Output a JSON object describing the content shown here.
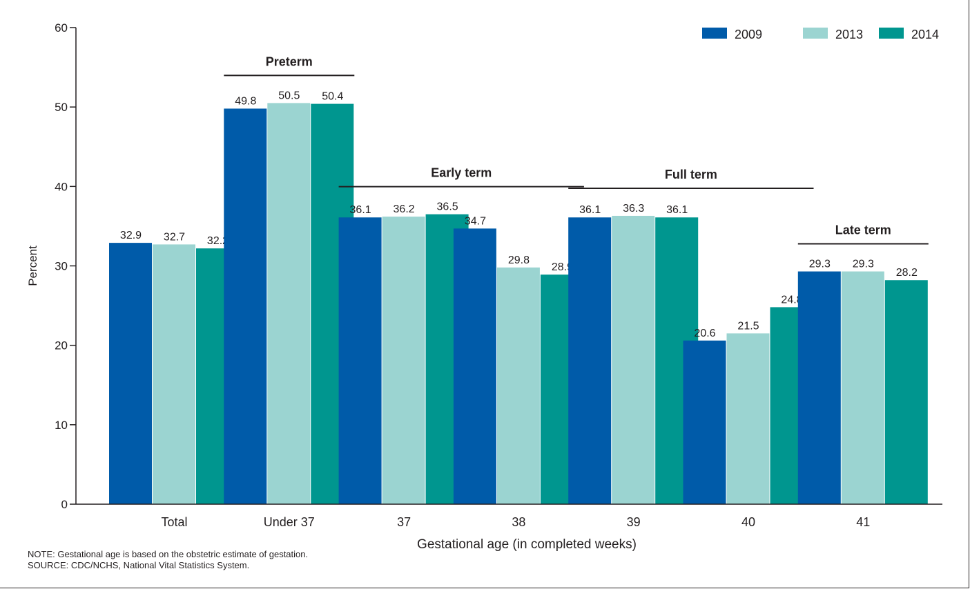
{
  "chart_data": {
    "type": "bar",
    "title": "",
    "xlabel": "Gestational age (in completed weeks)",
    "ylabel": "Percent",
    "ylim": [
      0,
      60
    ],
    "yticks": [
      0,
      10,
      20,
      30,
      40,
      50,
      60
    ],
    "categories": [
      "Total",
      "Under 37",
      "37",
      "38",
      "39",
      "40",
      "41"
    ],
    "series": [
      {
        "name": "2009",
        "color": "#005ba9",
        "values": [
          32.9,
          49.8,
          36.1,
          34.7,
          36.1,
          20.6,
          29.3
        ]
      },
      {
        "name": "2013",
        "color": "#9bd4d1",
        "values": [
          32.7,
          50.5,
          36.2,
          29.8,
          36.3,
          21.5,
          29.3
        ]
      },
      {
        "name": "2014",
        "color": "#00968f",
        "values": [
          32.2,
          50.4,
          36.5,
          28.9,
          36.1,
          24.8,
          28.2
        ]
      }
    ],
    "groups": [
      {
        "label": "Preterm",
        "categories": [
          "Under 37"
        ]
      },
      {
        "label": "Early term",
        "categories": [
          "37",
          "38"
        ]
      },
      {
        "label": "Full term",
        "categories": [
          "39",
          "40"
        ]
      },
      {
        "label": "Late term",
        "categories": [
          "41"
        ]
      }
    ],
    "legend_position": "top-right",
    "grid": false
  },
  "notes": {
    "note": "NOTE: Gestational age is based on the obstetric estimate of gestation.",
    "source": "SOURCE: CDC/NCHS, National Vital Statistics System."
  }
}
